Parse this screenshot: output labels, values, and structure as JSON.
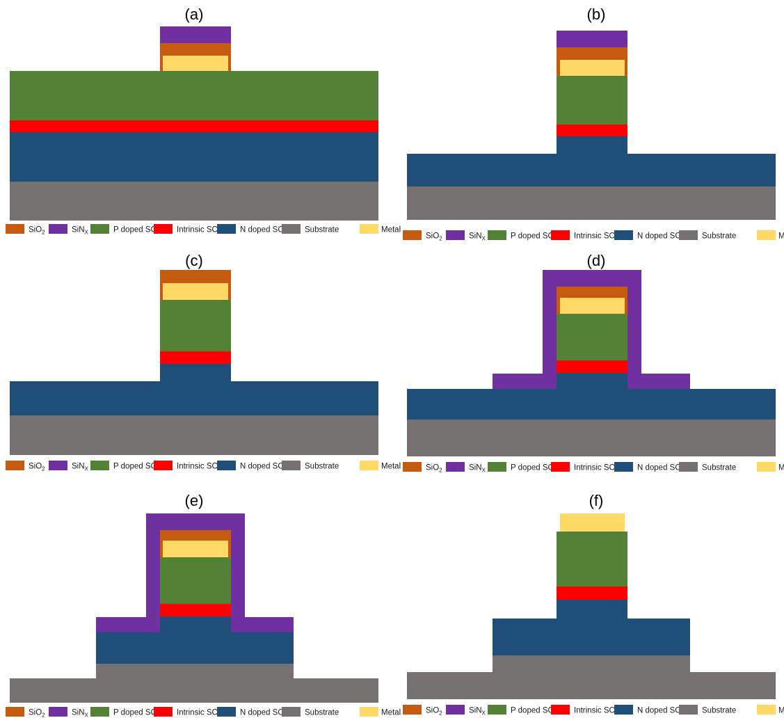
{
  "colors": {
    "sio2": "#C55A11",
    "sinx": "#7030A0",
    "pdoped": "#538135",
    "intrinsic": "#FF0000",
    "ndoped": "#1F4E79",
    "substrate": "#767171",
    "metal": "#FFD966"
  },
  "panels": [
    {
      "label": "(a)"
    },
    {
      "label": "(b)"
    },
    {
      "label": "(c)"
    },
    {
      "label": "(d)"
    },
    {
      "label": "(e)"
    },
    {
      "label": "(f)"
    }
  ],
  "legend": [
    {
      "label": "SiO",
      "sub": "2",
      "color_key": "sio2"
    },
    {
      "label": "SiN",
      "sub": "X",
      "color_key": "sinx"
    },
    {
      "label": "P doped SC",
      "sub": "",
      "color_key": "pdoped"
    },
    {
      "label": "Intrinsic SC",
      "sub": "",
      "color_key": "intrinsic"
    },
    {
      "label": "N doped SC",
      "sub": "",
      "color_key": "ndoped"
    },
    {
      "label": "Substrate",
      "sub": "",
      "color_key": "substrate"
    },
    {
      "label": "Metal",
      "sub": "",
      "color_key": "metal"
    }
  ]
}
